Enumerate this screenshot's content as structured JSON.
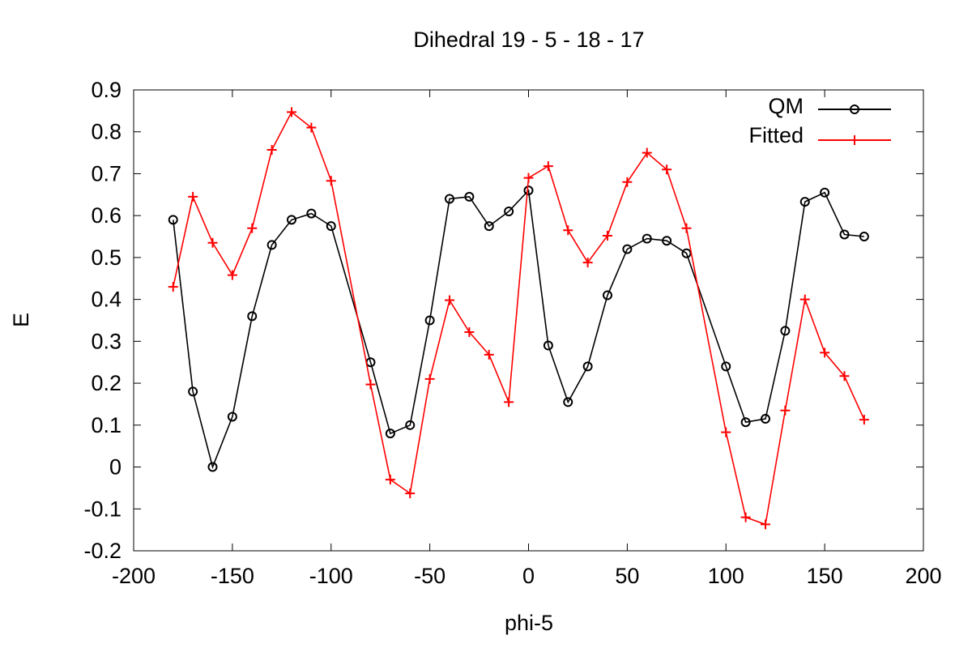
{
  "chart_data": {
    "type": "line",
    "title": "Dihedral  19 - 5 - 18 - 17",
    "xlabel": "phi-5",
    "ylabel": "E",
    "xlim": [
      -200,
      200
    ],
    "ylim": [
      -0.2,
      0.9
    ],
    "x_ticks": [
      -200,
      -150,
      -100,
      -50,
      0,
      50,
      100,
      150,
      200
    ],
    "y_ticks": [
      -0.2,
      -0.1,
      0,
      0.1,
      0.2,
      0.3,
      0.4,
      0.5,
      0.6,
      0.7,
      0.8,
      0.9
    ],
    "x_tick_labels": [
      "-200",
      "-150",
      "-100",
      "-50",
      "0",
      "50",
      "100",
      "150",
      "200"
    ],
    "y_tick_labels": [
      "-0.2",
      "-0.1",
      "0",
      "0.1",
      "0.2",
      "0.3",
      "0.4",
      "0.5",
      "0.6",
      "0.7",
      "0.8",
      "0.9"
    ],
    "grid": false,
    "legend_position": "top-right",
    "x": [
      -180,
      -170,
      -160,
      -150,
      -140,
      -130,
      -120,
      -110,
      -100,
      -80,
      -70,
      -60,
      -50,
      -40,
      -30,
      -20,
      -10,
      0,
      10,
      20,
      30,
      40,
      50,
      60,
      70,
      80,
      100,
      110,
      120,
      130,
      140,
      150,
      160,
      170
    ],
    "series": [
      {
        "name": "QM",
        "color": "#000000",
        "marker": "circle",
        "values": [
          0.59,
          0.18,
          0.0,
          0.12,
          0.36,
          0.53,
          0.59,
          0.605,
          0.575,
          0.25,
          0.08,
          0.1,
          0.35,
          0.64,
          0.645,
          0.575,
          0.61,
          0.66,
          0.29,
          0.155,
          0.24,
          0.41,
          0.52,
          0.545,
          0.54,
          0.51,
          0.24,
          0.107,
          0.115,
          0.325,
          0.633,
          0.655,
          0.555,
          0.55
        ]
      },
      {
        "name": "Fitted",
        "color": "#ff0000",
        "marker": "plus",
        "values": [
          0.43,
          0.645,
          0.535,
          0.458,
          0.57,
          0.757,
          0.847,
          0.81,
          0.683,
          0.197,
          -0.03,
          -0.063,
          0.21,
          0.398,
          0.322,
          0.268,
          0.155,
          0.69,
          0.718,
          0.565,
          0.488,
          0.552,
          0.68,
          0.75,
          0.71,
          0.57,
          0.083,
          -0.12,
          -0.137,
          0.135,
          0.4,
          0.273,
          0.217,
          0.113
        ]
      }
    ]
  }
}
